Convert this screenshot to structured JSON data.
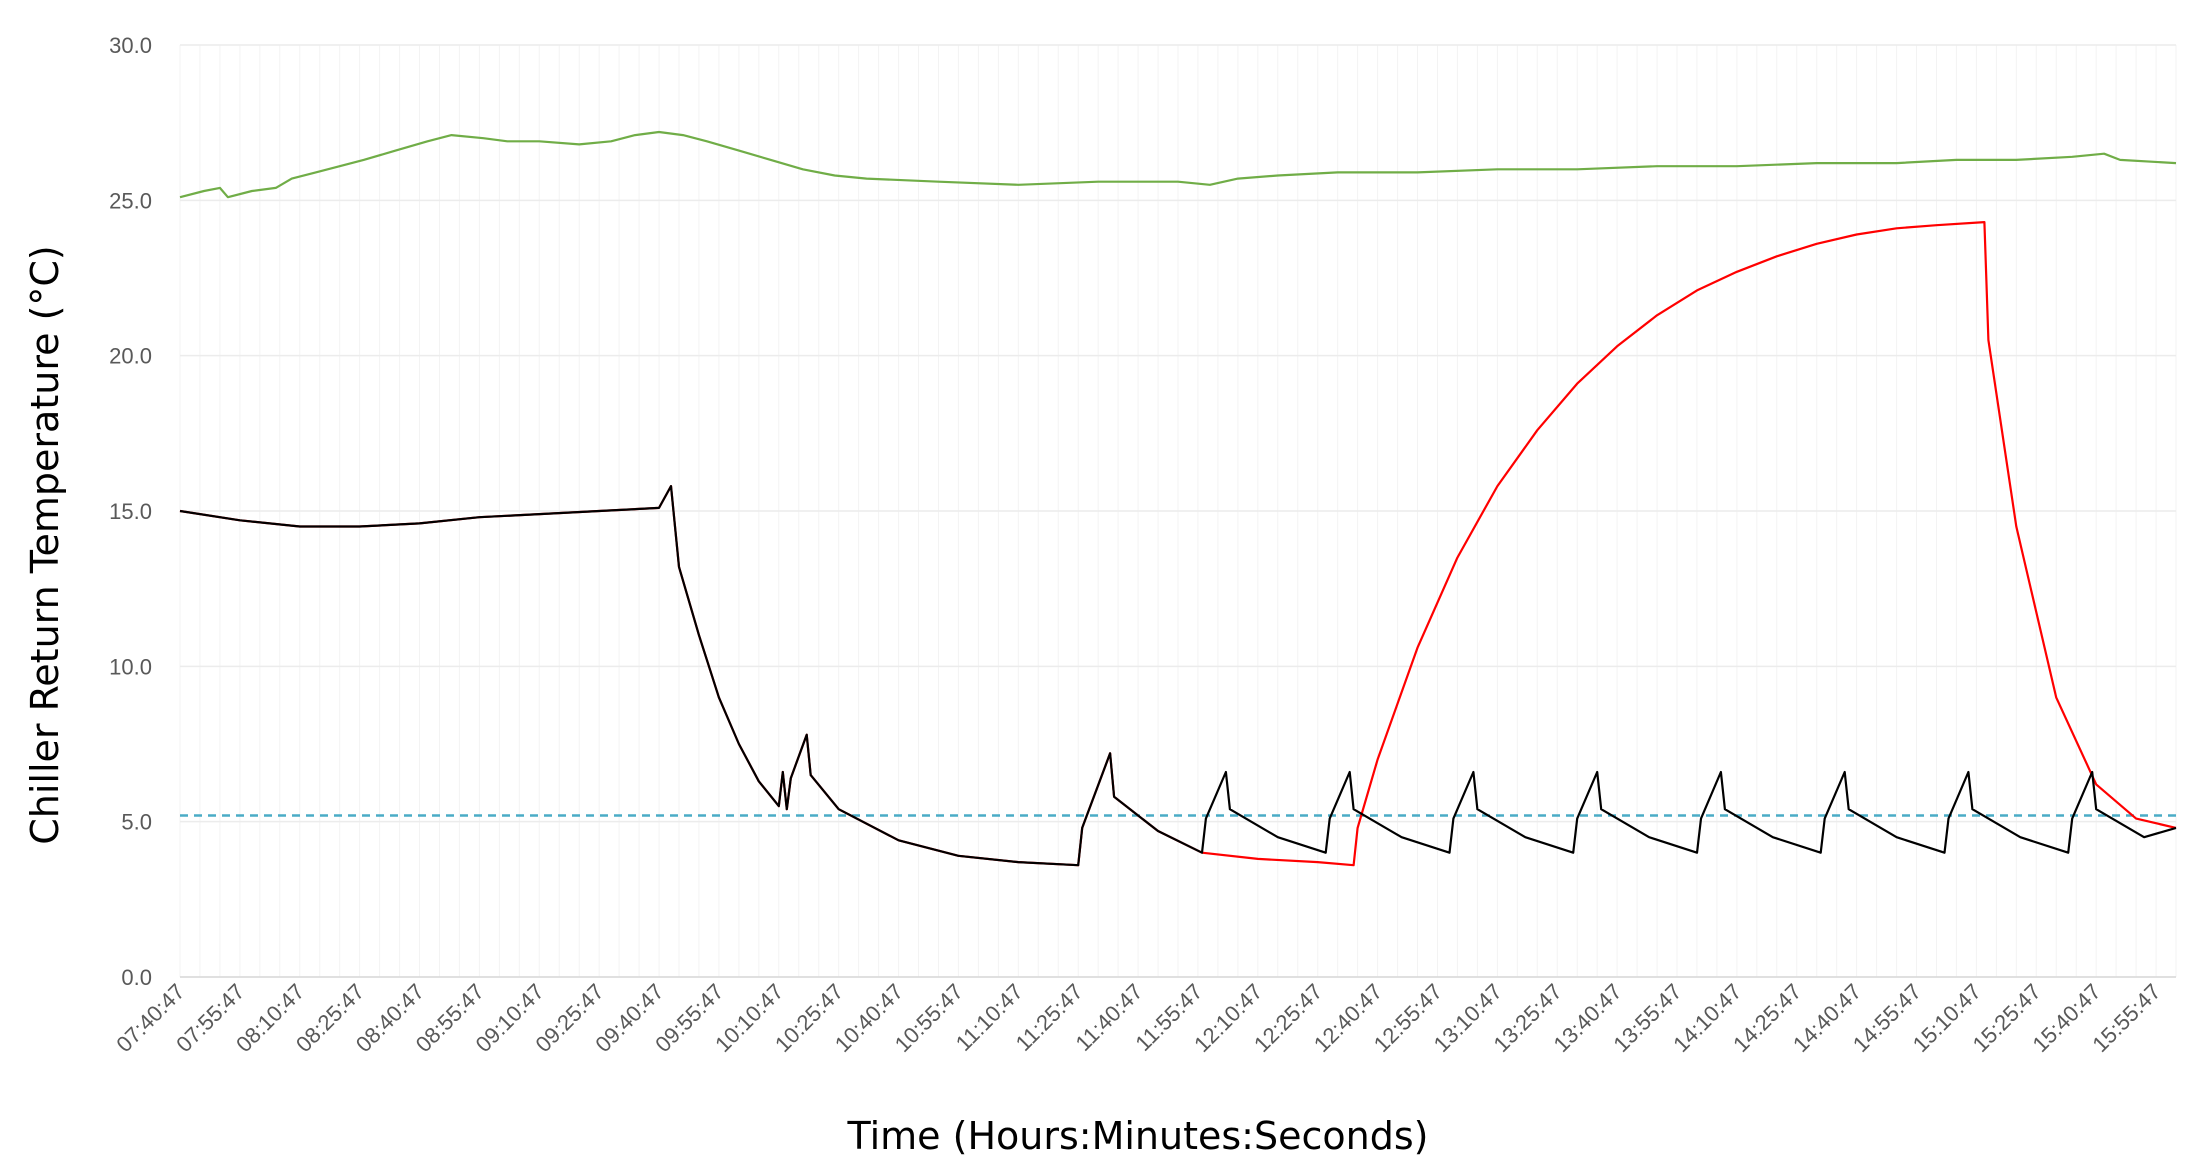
{
  "chart_data": {
    "type": "line",
    "title": "",
    "xlabel": "Time (Hours:Minutes:Seconds)",
    "ylabel": "Chiller Return Temperature (°C)",
    "ylim": [
      0,
      30
    ],
    "yticks": [
      "0.0",
      "5.0",
      "10.0",
      "15.0",
      "20.0",
      "25.0",
      "30.0"
    ],
    "xlim": [
      "07:40:47",
      "16:00:47"
    ],
    "x_ticks": [
      "07:40:47",
      "07:55:47",
      "08:10:47",
      "08:25:47",
      "08:40:47",
      "08:55:47",
      "09:10:47",
      "09:25:47",
      "09:40:47",
      "09:55:47",
      "10:10:47",
      "10:25:47",
      "10:40:47",
      "10:55:47",
      "11:10:47",
      "11:25:47",
      "11:40:47",
      "11:55:47",
      "12:10:47",
      "12:25:47",
      "12:40:47",
      "12:55:47",
      "13:10:47",
      "13:25:47",
      "13:40:47",
      "13:55:47",
      "14:10:47",
      "14:25:47",
      "14:40:47",
      "14:55:47",
      "15:10:47",
      "15:25:47",
      "15:40:47",
      "15:55:47"
    ],
    "grid": true,
    "legend": "none",
    "series": [
      {
        "color": "#70ad47",
        "style": "solid",
        "points": [
          [
            "07:40:47",
            25.1
          ],
          [
            "07:46:47",
            25.3
          ],
          [
            "07:50:47",
            25.4
          ],
          [
            "07:52:47",
            25.1
          ],
          [
            "07:58:47",
            25.3
          ],
          [
            "08:04:47",
            25.4
          ],
          [
            "08:08:47",
            25.7
          ],
          [
            "08:14:47",
            25.9
          ],
          [
            "08:20:47",
            26.1
          ],
          [
            "08:26:47",
            26.3
          ],
          [
            "08:34:47",
            26.6
          ],
          [
            "08:42:47",
            26.9
          ],
          [
            "08:48:47",
            27.1
          ],
          [
            "08:56:47",
            27.0
          ],
          [
            "09:02:47",
            26.9
          ],
          [
            "09:10:47",
            26.9
          ],
          [
            "09:20:47",
            26.8
          ],
          [
            "09:28:47",
            26.9
          ],
          [
            "09:34:47",
            27.1
          ],
          [
            "09:40:47",
            27.2
          ],
          [
            "09:46:47",
            27.1
          ],
          [
            "09:52:47",
            26.9
          ],
          [
            "10:00:47",
            26.6
          ],
          [
            "10:08:47",
            26.3
          ],
          [
            "10:16:47",
            26.0
          ],
          [
            "10:24:47",
            25.8
          ],
          [
            "10:32:47",
            25.7
          ],
          [
            "10:50:47",
            25.6
          ],
          [
            "11:10:47",
            25.5
          ],
          [
            "11:30:47",
            25.6
          ],
          [
            "11:50:47",
            25.6
          ],
          [
            "11:58:47",
            25.5
          ],
          [
            "12:05:47",
            25.7
          ],
          [
            "12:15:47",
            25.8
          ],
          [
            "12:30:47",
            25.9
          ],
          [
            "12:50:47",
            25.9
          ],
          [
            "13:10:47",
            26.0
          ],
          [
            "13:30:47",
            26.0
          ],
          [
            "13:50:47",
            26.1
          ],
          [
            "14:10:47",
            26.1
          ],
          [
            "14:30:47",
            26.2
          ],
          [
            "14:50:47",
            26.2
          ],
          [
            "15:05:47",
            26.3
          ],
          [
            "15:20:47",
            26.3
          ],
          [
            "15:34:47",
            26.4
          ],
          [
            "15:42:47",
            26.5
          ],
          [
            "15:46:47",
            26.3
          ],
          [
            "16:00:47",
            26.2
          ]
        ]
      },
      {
        "color": "#4aacc6",
        "style": "dashed",
        "points": [
          [
            "07:40:47",
            5.2
          ],
          [
            "16:00:47",
            5.2
          ]
        ]
      },
      {
        "color": "#ff0000",
        "style": "solid",
        "points": [
          [
            "07:40:47",
            15.0
          ],
          [
            "07:55:47",
            14.7
          ],
          [
            "08:10:47",
            14.5
          ],
          [
            "08:25:47",
            14.5
          ],
          [
            "08:40:47",
            14.6
          ],
          [
            "08:55:47",
            14.8
          ],
          [
            "09:10:47",
            14.9
          ],
          [
            "09:25:47",
            15.0
          ],
          [
            "09:40:47",
            15.1
          ],
          [
            "09:43:47",
            15.8
          ],
          [
            "09:45:47",
            13.2
          ],
          [
            "09:50:47",
            11.0
          ],
          [
            "09:55:47",
            9.0
          ],
          [
            "10:00:47",
            7.5
          ],
          [
            "10:05:47",
            6.3
          ],
          [
            "10:10:47",
            5.5
          ],
          [
            "10:11:47",
            6.6
          ],
          [
            "10:12:47",
            5.4
          ],
          [
            "10:13:47",
            6.4
          ],
          [
            "10:17:47",
            7.8
          ],
          [
            "10:18:47",
            6.5
          ],
          [
            "10:25:47",
            5.4
          ],
          [
            "10:40:47",
            4.4
          ],
          [
            "10:55:47",
            3.9
          ],
          [
            "11:10:47",
            3.7
          ],
          [
            "11:25:47",
            3.6
          ],
          [
            "11:26:47",
            4.8
          ],
          [
            "11:33:47",
            7.2
          ],
          [
            "11:34:47",
            5.8
          ],
          [
            "11:45:47",
            4.7
          ],
          [
            "11:56:47",
            4.0
          ],
          [
            "12:10:47",
            3.8
          ],
          [
            "12:25:47",
            3.7
          ],
          [
            "12:34:47",
            3.6
          ],
          [
            "12:35:47",
            4.8
          ],
          [
            "12:40:47",
            7.0
          ],
          [
            "12:50:47",
            10.6
          ],
          [
            "13:00:47",
            13.5
          ],
          [
            "13:10:47",
            15.8
          ],
          [
            "13:20:47",
            17.6
          ],
          [
            "13:30:47",
            19.1
          ],
          [
            "13:40:47",
            20.3
          ],
          [
            "13:50:47",
            21.3
          ],
          [
            "14:00:47",
            22.1
          ],
          [
            "14:10:47",
            22.7
          ],
          [
            "14:20:47",
            23.2
          ],
          [
            "14:30:47",
            23.6
          ],
          [
            "14:40:47",
            23.9
          ],
          [
            "14:50:47",
            24.1
          ],
          [
            "15:00:47",
            24.2
          ],
          [
            "15:12:47",
            24.3
          ],
          [
            "15:13:47",
            20.5
          ],
          [
            "15:20:47",
            14.5
          ],
          [
            "15:30:47",
            9.0
          ],
          [
            "15:40:47",
            6.2
          ],
          [
            "15:50:47",
            5.1
          ],
          [
            "16:00:47",
            4.8
          ]
        ]
      },
      {
        "color": "#000000",
        "style": "solid",
        "points": [
          [
            "07:40:47",
            15.0
          ],
          [
            "07:55:47",
            14.7
          ],
          [
            "08:10:47",
            14.5
          ],
          [
            "08:25:47",
            14.5
          ],
          [
            "08:40:47",
            14.6
          ],
          [
            "08:55:47",
            14.8
          ],
          [
            "09:10:47",
            14.9
          ],
          [
            "09:25:47",
            15.0
          ],
          [
            "09:40:47",
            15.1
          ],
          [
            "09:43:47",
            15.8
          ],
          [
            "09:45:47",
            13.2
          ],
          [
            "09:50:47",
            11.0
          ],
          [
            "09:55:47",
            9.0
          ],
          [
            "10:00:47",
            7.5
          ],
          [
            "10:05:47",
            6.3
          ],
          [
            "10:10:47",
            5.5
          ],
          [
            "10:11:47",
            6.6
          ],
          [
            "10:12:47",
            5.4
          ],
          [
            "10:13:47",
            6.4
          ],
          [
            "10:17:47",
            7.8
          ],
          [
            "10:18:47",
            6.5
          ],
          [
            "10:25:47",
            5.4
          ],
          [
            "10:40:47",
            4.4
          ],
          [
            "10:55:47",
            3.9
          ],
          [
            "11:10:47",
            3.7
          ],
          [
            "11:25:47",
            3.6
          ],
          [
            "11:26:47",
            4.8
          ],
          [
            "11:33:47",
            7.2
          ],
          [
            "11:34:47",
            5.8
          ],
          [
            "11:45:47",
            4.7
          ],
          [
            "11:56:47",
            4.0
          ],
          [
            "11:57:47",
            5.1
          ],
          [
            "12:02:47",
            6.6
          ],
          [
            "12:03:47",
            5.4
          ],
          [
            "12:15:47",
            4.5
          ],
          [
            "12:27:47",
            4.0
          ],
          [
            "12:28:47",
            5.1
          ],
          [
            "12:33:47",
            6.6
          ],
          [
            "12:34:47",
            5.4
          ],
          [
            "12:46:47",
            4.5
          ],
          [
            "12:58:47",
            4.0
          ],
          [
            "12:59:47",
            5.1
          ],
          [
            "13:04:47",
            6.6
          ],
          [
            "13:05:47",
            5.4
          ],
          [
            "13:17:47",
            4.5
          ],
          [
            "13:29:47",
            4.0
          ],
          [
            "13:30:47",
            5.1
          ],
          [
            "13:35:47",
            6.6
          ],
          [
            "13:36:47",
            5.4
          ],
          [
            "13:48:47",
            4.5
          ],
          [
            "14:00:47",
            4.0
          ],
          [
            "14:01:47",
            5.1
          ],
          [
            "14:06:47",
            6.6
          ],
          [
            "14:07:47",
            5.4
          ],
          [
            "14:19:47",
            4.5
          ],
          [
            "14:31:47",
            4.0
          ],
          [
            "14:32:47",
            5.1
          ],
          [
            "14:37:47",
            6.6
          ],
          [
            "14:38:47",
            5.4
          ],
          [
            "14:50:47",
            4.5
          ],
          [
            "15:02:47",
            4.0
          ],
          [
            "15:03:47",
            5.1
          ],
          [
            "15:08:47",
            6.6
          ],
          [
            "15:09:47",
            5.4
          ],
          [
            "15:21:47",
            4.5
          ],
          [
            "15:33:47",
            4.0
          ],
          [
            "15:34:47",
            5.1
          ],
          [
            "15:39:47",
            6.6
          ],
          [
            "15:40:47",
            5.4
          ],
          [
            "15:52:47",
            4.5
          ],
          [
            "16:00:47",
            4.8
          ]
        ]
      }
    ]
  }
}
